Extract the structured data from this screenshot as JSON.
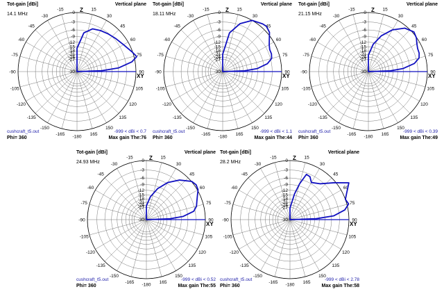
{
  "chart_data": [
    {
      "type": "polar",
      "title": "Tot-gain [dBi]",
      "plane": "Vertical plane",
      "frequency": "14.1 MHz",
      "file": "cushcraft_t5.out",
      "range_text": "-999 < dBi < 0.7",
      "phi": "Phi= 360",
      "max_gain": "Max gain The:76",
      "radial_ticks": [
        "0",
        "-3",
        "-6",
        "-9",
        "-12",
        "-15",
        "-18",
        "-21",
        "-24",
        "-27",
        "-30"
      ],
      "angle_ticks": [
        "-15",
        "15",
        "-30",
        "30",
        "-45",
        "45",
        "-60",
        "60",
        "-75",
        "75",
        "-90",
        "90",
        "-105",
        "105",
        "-120",
        "120",
        "-135",
        "135",
        "-150",
        "150",
        "-165",
        "165",
        "-180"
      ],
      "axis_labels": {
        "zenith": "Z",
        "horizon": "XY"
      },
      "series": [
        {
          "theta": [
            0,
            10,
            20,
            30,
            40,
            50,
            60,
            65,
            70,
            75,
            76,
            80,
            85,
            88,
            90
          ],
          "dbi": [
            -16,
            -7,
            -4.5,
            -3.8,
            -3.2,
            -2.5,
            -1.6,
            -1,
            -0.2,
            0.6,
            0.7,
            -1,
            -6,
            -15,
            -30
          ]
        }
      ]
    },
    {
      "type": "polar",
      "title": "Tot-gain [dBi]",
      "plane": "Vertical plane",
      "frequency": "18.11 MHz",
      "file": "cushcraft_t5.out",
      "range_text": "-999 < dBi < 1.1",
      "phi": "Phi= 360",
      "max_gain": "Max gain The:44",
      "radial_ticks": [
        "0",
        "-3",
        "-6",
        "-9",
        "-12",
        "-15",
        "-18",
        "-21",
        "-24",
        "-27",
        "-30"
      ],
      "angle_ticks": [
        "-15",
        "15",
        "-30",
        "30",
        "-45",
        "45",
        "-60",
        "60",
        "-75",
        "75",
        "-90",
        "90",
        "-105",
        "105",
        "-120",
        "120",
        "-135",
        "135",
        "-150",
        "150",
        "-165",
        "165",
        "-180"
      ],
      "axis_labels": {
        "zenith": "Z",
        "horizon": "XY"
      },
      "series": [
        {
          "theta": [
            0,
            10,
            20,
            30,
            40,
            44,
            50,
            60,
            65,
            70,
            75,
            80,
            85,
            88,
            90
          ],
          "dbi": [
            -21,
            -7,
            -2.5,
            0,
            0.9,
            1.1,
            0.6,
            -1.6,
            -2.2,
            -2.2,
            -2.6,
            -4.5,
            -9,
            -17,
            -30
          ]
        }
      ]
    },
    {
      "type": "polar",
      "title": "Tot-gain [dBi]",
      "plane": "Vertical plane",
      "frequency": "21.15 MHz",
      "file": "cushcraft_t5.out",
      "range_text": "-999 < dBi < 0.39",
      "phi": "Phi= 360",
      "max_gain": "Max gain The:49",
      "radial_ticks": [
        "0",
        "-3",
        "-6",
        "-9",
        "-12",
        "-15",
        "-18",
        "-21",
        "-24",
        "-27",
        "-30"
      ],
      "angle_ticks": [
        "-15",
        "15",
        "-30",
        "30",
        "-45",
        "45",
        "-60",
        "60",
        "-75",
        "75",
        "-90",
        "90",
        "-105",
        "105",
        "-120",
        "120",
        "-135",
        "135",
        "-150",
        "150",
        "-165",
        "165",
        "-180"
      ],
      "axis_labels": {
        "zenith": "Z",
        "horizon": "XY"
      },
      "series": [
        {
          "theta": [
            0,
            10,
            20,
            30,
            40,
            49,
            55,
            60,
            65,
            70,
            75,
            80,
            85,
            88,
            90
          ],
          "dbi": [
            -22,
            -13,
            -7.5,
            -3.5,
            -0.7,
            0.4,
            -0.1,
            -0.9,
            -1.4,
            -1.5,
            -2,
            -4,
            -9,
            -17,
            -30
          ]
        }
      ]
    },
    {
      "type": "polar",
      "title": "Tot-gain [dBi]",
      "plane": "Vertical plane",
      "frequency": "24.93 MHz",
      "file": "cushcraft_t5.out",
      "range_text": "-999 < dBi < 0.52",
      "phi": "Phi= 360",
      "max_gain": "Max gain The:55",
      "radial_ticks": [
        "0",
        "-3",
        "-6",
        "-9",
        "-12",
        "-15",
        "-18",
        "-21",
        "-24",
        "-27",
        "-30"
      ],
      "angle_ticks": [
        "-15",
        "15",
        "-30",
        "30",
        "-45",
        "45",
        "-60",
        "60",
        "-75",
        "75",
        "-90",
        "90",
        "-105",
        "105",
        "-120",
        "120",
        "-135",
        "135",
        "-150",
        "150",
        "-165",
        "165",
        "-180"
      ],
      "axis_labels": {
        "zenith": "Z",
        "horizon": "XY"
      },
      "series": [
        {
          "theta": [
            0,
            10,
            20,
            30,
            40,
            50,
            55,
            60,
            65,
            70,
            75,
            80,
            85,
            88,
            90
          ],
          "dbi": [
            -25,
            -16,
            -10,
            -5.5,
            -2.3,
            0.1,
            0.5,
            0.2,
            -0.8,
            -1.6,
            -2.2,
            -3.5,
            -8,
            -16,
            -30
          ]
        }
      ]
    },
    {
      "type": "polar",
      "title": "Tot-gain [dBi]",
      "plane": "Vertical plane",
      "frequency": "28.2 MHz",
      "file": "cushcraft_t5.out",
      "range_text": "-999 < dBi < 2.78",
      "phi": "Phi= 360",
      "max_gain": "Max gain The:58",
      "radial_ticks": [
        "0",
        "-3",
        "-6",
        "-9",
        "-12",
        "-15",
        "-18",
        "-21",
        "-24",
        "-27",
        "-30"
      ],
      "angle_ticks": [
        "-15",
        "15",
        "-30",
        "30",
        "-45",
        "45",
        "-60",
        "60",
        "-75",
        "75",
        "-90",
        "90",
        "-105",
        "105",
        "-120",
        "120",
        "-135",
        "135",
        "-150",
        "150",
        "-165",
        "165",
        "-180"
      ],
      "axis_labels": {
        "zenith": "Z",
        "horizon": "XY"
      },
      "series": [
        {
          "theta": [
            0,
            10,
            15,
            20,
            25,
            30,
            40,
            50,
            58,
            65,
            70,
            75,
            80,
            85,
            88,
            90
          ],
          "dbi": [
            -28,
            -14,
            -8,
            -3.5,
            -3.8,
            -5.5,
            -4,
            -0.5,
            2.8,
            1,
            0,
            0.5,
            -1,
            -5,
            -14,
            -30
          ]
        }
      ]
    }
  ],
  "colors": {
    "pattern": "#1010c0",
    "grid": "#777777",
    "blue_text": "#1a1aa8"
  }
}
